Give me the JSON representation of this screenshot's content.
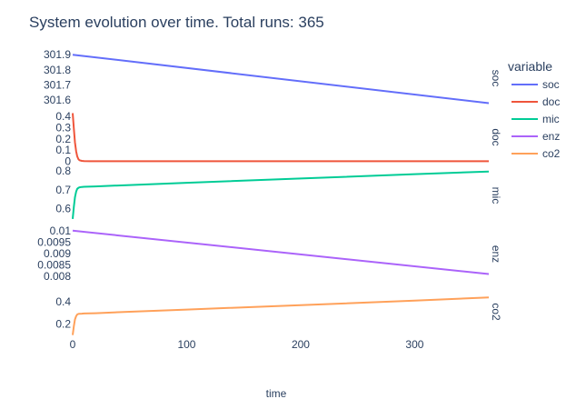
{
  "chart_data": {
    "type": "line",
    "title": "System evolution over time. Total runs: 365",
    "xlabel": "time",
    "xlim": [
      0,
      365
    ],
    "x_ticks": [
      0,
      100,
      200,
      300
    ],
    "x_tick_labels": [
      "0",
      "100",
      "200",
      "300"
    ],
    "legend": {
      "title": "variable",
      "position": "right"
    },
    "grid": false,
    "facets": [
      {
        "name": "soc",
        "label": "soc",
        "color": "#636efa",
        "ylim": [
          301.565,
          301.925
        ],
        "y_ticks": [
          301.6,
          301.7,
          301.8,
          301.9
        ],
        "y_tick_labels": [
          "301.6",
          "301.7",
          "301.8",
          "301.9"
        ],
        "x": [
          0,
          365
        ],
        "values": [
          301.9,
          301.58
        ]
      },
      {
        "name": "doc",
        "label": "doc",
        "color": "#ef553b",
        "ylim": [
          -0.02,
          0.45
        ],
        "y_ticks": [
          0,
          0.1,
          0.2,
          0.3,
          0.4
        ],
        "y_tick_labels": [
          "0",
          "0.1",
          "0.2",
          "0.3",
          "0.4"
        ],
        "x": [
          0,
          1,
          2,
          3,
          4,
          5,
          6,
          8,
          10,
          15,
          20,
          50,
          100,
          200,
          300,
          365
        ],
        "values": [
          0.43,
          0.29,
          0.17,
          0.09,
          0.045,
          0.02,
          0.01,
          0.004,
          0.002,
          0.001,
          0.001,
          0.001,
          0.001,
          0.001,
          0.001,
          0.001
        ]
      },
      {
        "name": "mic",
        "label": "mic",
        "color": "#00cc96",
        "ylim": [
          0.53,
          0.81
        ],
        "y_ticks": [
          0.6,
          0.7,
          0.8
        ],
        "y_tick_labels": [
          "0.6",
          "0.7",
          "0.8"
        ],
        "x": [
          0,
          1,
          2,
          3,
          4,
          5,
          6,
          8,
          10,
          20,
          50,
          100,
          200,
          300,
          365
        ],
        "values": [
          0.545,
          0.61,
          0.66,
          0.69,
          0.705,
          0.71,
          0.713,
          0.715,
          0.716,
          0.718,
          0.725,
          0.737,
          0.76,
          0.783,
          0.797
        ]
      },
      {
        "name": "enz",
        "label": "enz",
        "color": "#ab63fa",
        "ylim": [
          0.0078,
          0.01015
        ],
        "y_ticks": [
          0.008,
          0.0085,
          0.009,
          0.0095,
          0.01
        ],
        "y_tick_labels": [
          "0.008",
          "0.0085",
          "0.009",
          "0.0095",
          "0.01"
        ],
        "x": [
          0,
          365
        ],
        "values": [
          0.01,
          0.0081
        ]
      },
      {
        "name": "co2",
        "label": "co2",
        "color": "#ffa15a",
        "ylim": [
          0.08,
          0.54
        ],
        "y_ticks": [
          0.2,
          0.4
        ],
        "y_tick_labels": [
          "0.2",
          "0.4"
        ],
        "x": [
          0,
          1,
          2,
          3,
          4,
          5,
          6,
          8,
          10,
          20,
          50,
          100,
          200,
          300,
          365
        ],
        "values": [
          0.1,
          0.18,
          0.24,
          0.27,
          0.285,
          0.29,
          0.292,
          0.293,
          0.294,
          0.297,
          0.31,
          0.33,
          0.37,
          0.41,
          0.44
        ]
      }
    ]
  }
}
